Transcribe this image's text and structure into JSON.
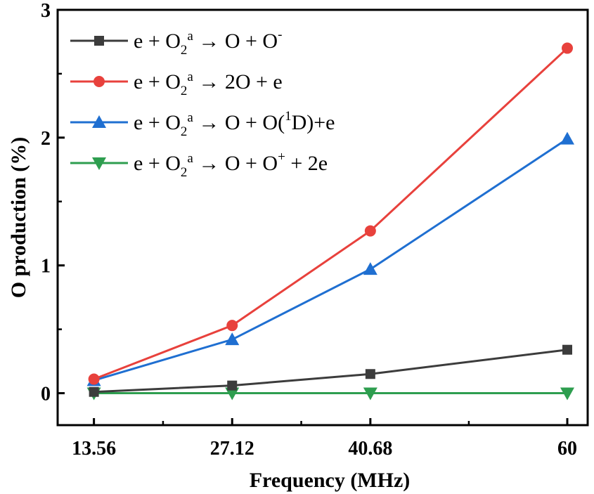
{
  "chart_data": {
    "type": "line",
    "title": "",
    "xlabel": "Frequency (MHz)",
    "ylabel": "O production (%)",
    "x": [
      13.56,
      27.12,
      40.68,
      60
    ],
    "x_tick_labels": [
      "13.56",
      "27.12",
      "40.68",
      "60"
    ],
    "xlim": [
      10,
      62
    ],
    "ylim": [
      -0.25,
      3
    ],
    "y_ticks": [
      0,
      1,
      2,
      3
    ],
    "y_tick_labels": [
      "0",
      "1",
      "2",
      "3"
    ],
    "legend_position": "top-left",
    "series": [
      {
        "name": "e + O2a → O + O-",
        "label_parts": {
          "a": "e + O",
          "sub": "2",
          "sup1": "a",
          "b": " → O + O",
          "sup2": "-",
          "c": ""
        },
        "marker": "square",
        "color": "#3c3c3c",
        "values": [
          0.01,
          0.06,
          0.15,
          0.34
        ]
      },
      {
        "name": "e + O2a → 2O + e",
        "label_parts": {
          "a": "e + O",
          "sub": "2",
          "sup1": "a",
          "b": " → 2O + e",
          "sup2": "",
          "c": ""
        },
        "marker": "circle",
        "color": "#e8413c",
        "values": [
          0.11,
          0.53,
          1.27,
          2.7
        ]
      },
      {
        "name": "e + O2a → O + O(1D)+e",
        "label_parts": {
          "a": "e + O",
          "sub": "2",
          "sup1": "a",
          "b": " → O + O(",
          "sup2": "1",
          "c": "D)+e"
        },
        "marker": "triangle-up",
        "color": "#1f6fd1",
        "values": [
          0.1,
          0.42,
          0.97,
          1.99
        ]
      },
      {
        "name": "e + O2a → O + O+ + 2e",
        "label_parts": {
          "a": "e + O",
          "sub": "2",
          "sup1": "a",
          "b": " → O + O",
          "sup2": "+",
          "c": " + 2e"
        },
        "marker": "triangle-down",
        "color": "#2e9e4f",
        "values": [
          0.0,
          0.0,
          0.0,
          0.0
        ]
      }
    ]
  }
}
